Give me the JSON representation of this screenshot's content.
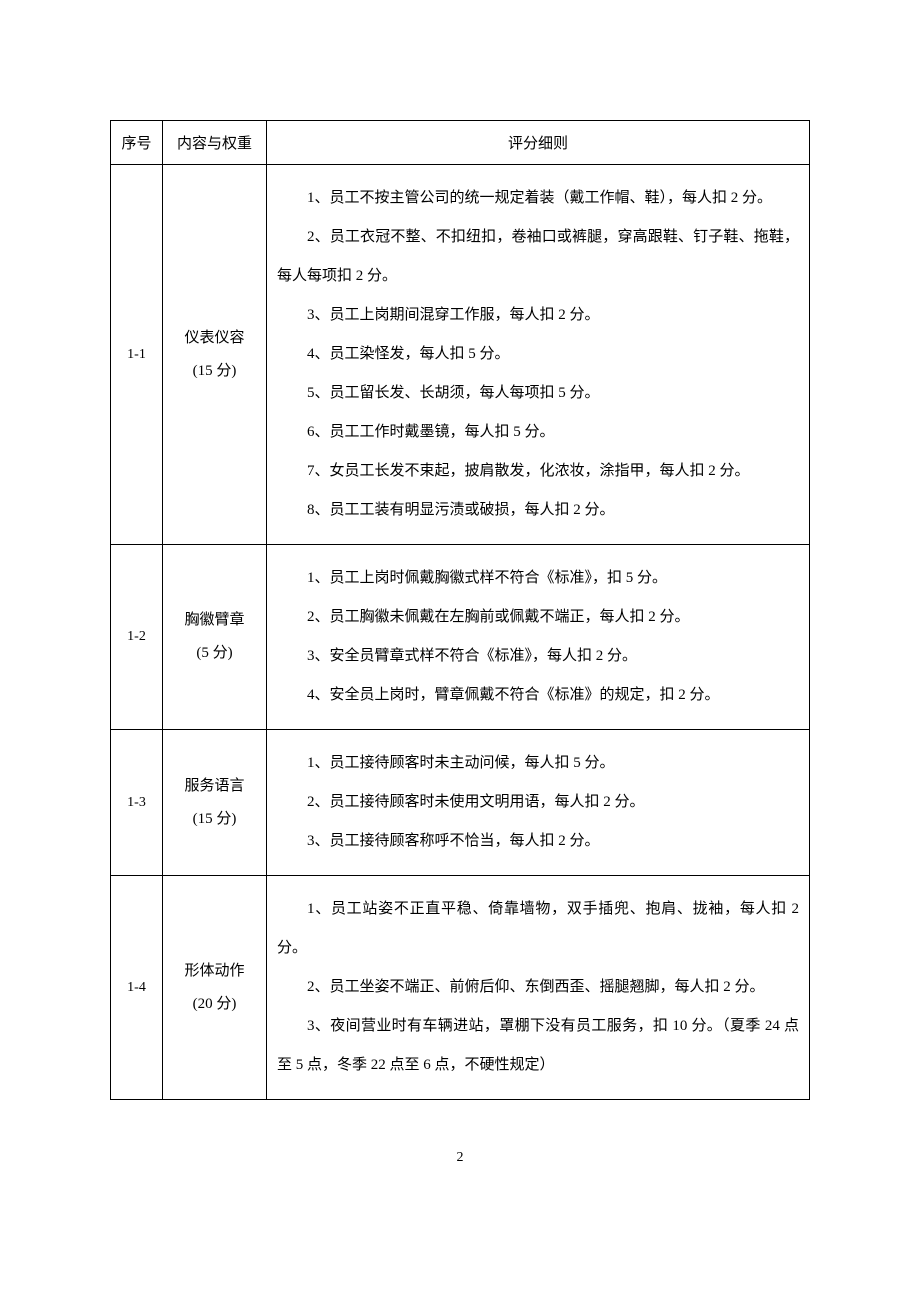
{
  "header": {
    "seq": "序号",
    "content": "内容与权重",
    "rules": "评分细则"
  },
  "rows": [
    {
      "seq": "1-1",
      "content_line1": "仪表仪容",
      "content_line2": "(15 分)",
      "rules": [
        "1、员工不按主管公司的统一规定着装（戴工作帽、鞋），每人扣 2 分。",
        "2、员工衣冠不整、不扣纽扣，卷袖口或裤腿，穿高跟鞋、钉子鞋、拖鞋，每人每项扣 2 分。",
        "3、员工上岗期间混穿工作服，每人扣 2 分。",
        "4、员工染怪发，每人扣 5 分。",
        "5、员工留长发、长胡须，每人每项扣 5 分。",
        "6、员工工作时戴墨镜，每人扣 5 分。",
        "7、女员工长发不束起，披肩散发，化浓妆，涂指甲，每人扣 2 分。",
        "8、员工工装有明显污渍或破损，每人扣 2 分。"
      ]
    },
    {
      "seq": "1-2",
      "content_line1": "胸徽臂章",
      "content_line2": "(5 分)",
      "rules": [
        "1、员工上岗时佩戴胸徽式样不符合《标准》，扣 5 分。",
        "2、员工胸徽未佩戴在左胸前或佩戴不端正，每人扣 2 分。",
        "3、安全员臂章式样不符合《标准》，每人扣 2 分。",
        "4、安全员上岗时，臂章佩戴不符合《标准》的规定，扣 2 分。"
      ]
    },
    {
      "seq": "1-3",
      "content_line1": "服务语言",
      "content_line2": "(15 分)",
      "rules": [
        "1、员工接待顾客时未主动问候，每人扣 5 分。",
        "2、员工接待顾客时未使用文明用语，每人扣 2 分。",
        "3、员工接待顾客称呼不恰当，每人扣 2 分。"
      ]
    },
    {
      "seq": "1-4",
      "content_line1": "形体动作",
      "content_line2": "(20 分)",
      "rules": [
        "1、员工站姿不正直平稳、倚靠墙物，双手插兜、抱肩、拢袖，每人扣 2 分。",
        "2、员工坐姿不端正、前俯后仰、东倒西歪、摇腿翘脚，每人扣 2 分。",
        "3、夜间营业时有车辆进站，罩棚下没有员工服务，扣 10 分。（夏季 24 点至 5 点，冬季 22 点至 6 点，不硬性规定）"
      ]
    }
  ],
  "page_number": "2"
}
